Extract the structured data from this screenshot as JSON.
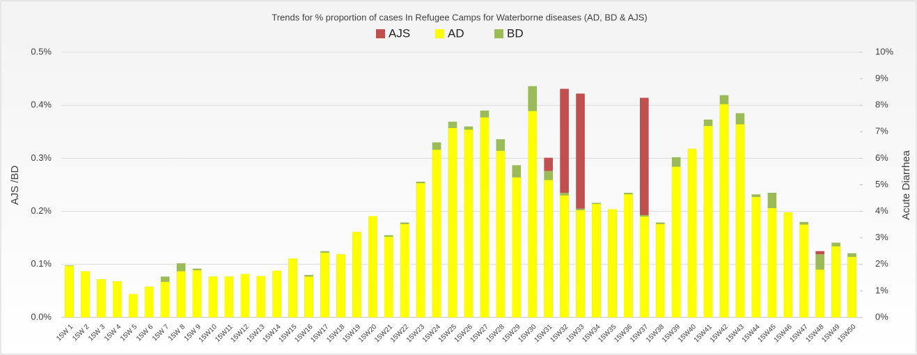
{
  "chart_data": {
    "type": "bar",
    "title": "Trends for % proportion of cases In Refugee Camps for Waterborne diseases (AD, BD & AJS)",
    "ylabel": "AJS /BD",
    "y2label": "Acute Diarrhea",
    "categories": [
      "15W 1",
      "15W 2",
      "15W 3",
      "15W 4",
      "15W 5",
      "15W 6",
      "15W 7",
      "15W 8",
      "15W 9",
      "15W10",
      "15W11",
      "15W12",
      "15W13",
      "15W14",
      "15W15",
      "15W16",
      "15W17",
      "15W18",
      "15W19",
      "15W20",
      "15W21",
      "15W22",
      "15W23",
      "15W24",
      "15W25",
      "15W26",
      "15W27",
      "15W28",
      "15W29",
      "15W30",
      "15W31",
      "15W32",
      "15W33",
      "15W34",
      "15W35",
      "15W36",
      "15W37",
      "15W38",
      "15W39",
      "15W40",
      "15W41",
      "15W42",
      "15W43",
      "15W44",
      "15W45",
      "15W46",
      "15W47",
      "15W48",
      "15W49",
      "15W50"
    ],
    "series": [
      {
        "name": "AJS",
        "color": "#c0504d",
        "axis": "y",
        "stack": "primary",
        "values": [
          0,
          0,
          0,
          0,
          0,
          0,
          0,
          0,
          0,
          0,
          0,
          0,
          0,
          0,
          0,
          0,
          0,
          0,
          0,
          0,
          0,
          0,
          0,
          0,
          0,
          0,
          0,
          0,
          0,
          0,
          0.025,
          0.196,
          0.217,
          0,
          0,
          0,
          0.221,
          0,
          0,
          0,
          0,
          0,
          0,
          0,
          0,
          0,
          0,
          0.006,
          0,
          0
        ]
      },
      {
        "name": "AD",
        "color": "#ffff00",
        "axis": "y2",
        "values": [
          1.94,
          1.74,
          1.44,
          1.36,
          0.88,
          1.16,
          1.34,
          1.74,
          1.78,
          1.54,
          1.54,
          1.64,
          1.56,
          1.76,
          2.22,
          1.54,
          2.44,
          2.38,
          3.22,
          3.82,
          3.04,
          3.52,
          5.06,
          6.32,
          7.14,
          7.08,
          7.54,
          6.28,
          5.28,
          7.78,
          5.18,
          4.6,
          4.04,
          4.28,
          4.08,
          4.64,
          3.8,
          3.52,
          5.68,
          6.36,
          7.22,
          8.04,
          7.28,
          4.54,
          4.12,
          3.96,
          3.5,
          1.8,
          2.68,
          2.28
        ]
      },
      {
        "name": "BD",
        "color": "#9bbb59",
        "axis": "y",
        "stack": "primary",
        "values": [
          0.098,
          0.087,
          0.072,
          0.068,
          0.044,
          0.058,
          0.077,
          0.102,
          0.092,
          0.077,
          0.077,
          0.082,
          0.078,
          0.088,
          0.111,
          0.08,
          0.125,
          0.119,
          0.161,
          0.191,
          0.155,
          0.179,
          0.256,
          0.33,
          0.369,
          0.36,
          0.39,
          0.336,
          0.287,
          0.436,
          0.276,
          0.235,
          0.205,
          0.216,
          0.204,
          0.235,
          0.193,
          0.179,
          0.302,
          0.318,
          0.373,
          0.419,
          0.385,
          0.232,
          0.235,
          0.198,
          0.18,
          0.119,
          0.141,
          0.121
        ]
      }
    ],
    "ylim": [
      0,
      0.5
    ],
    "yticks": [
      {
        "value": 0,
        "label": "0.0%"
      },
      {
        "value": 0.1,
        "label": "0.1%"
      },
      {
        "value": 0.2,
        "label": "0.2%"
      },
      {
        "value": 0.3,
        "label": "0.3%"
      },
      {
        "value": 0.4,
        "label": "0.4%"
      },
      {
        "value": 0.5,
        "label": "0.5%"
      }
    ],
    "y2lim": [
      0,
      10
    ],
    "y2ticks": [
      {
        "value": 0,
        "label": "0%"
      },
      {
        "value": 1,
        "label": "1%"
      },
      {
        "value": 2,
        "label": "2%"
      },
      {
        "value": 3,
        "label": "3%"
      },
      {
        "value": 4,
        "label": "4%"
      },
      {
        "value": 5,
        "label": "5%"
      },
      {
        "value": 6,
        "label": "6%"
      },
      {
        "value": 7,
        "label": "7%"
      },
      {
        "value": 8,
        "label": "8%"
      },
      {
        "value": 9,
        "label": "9%"
      },
      {
        "value": 10,
        "label": "10%"
      }
    ],
    "grid": true,
    "legend": "top"
  }
}
